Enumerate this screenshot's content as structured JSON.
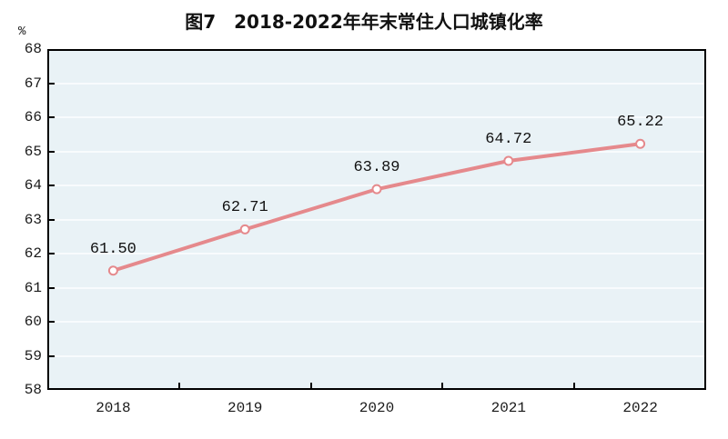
{
  "title": "图7　2018-2022年年末常住人口城镇化率",
  "chart_data": {
    "type": "line",
    "title": "图7　2018-2022年年末常住人口城镇化率",
    "categories": [
      "2018",
      "2019",
      "2020",
      "2021",
      "2022"
    ],
    "series": [
      {
        "name": "年末常住人口城镇化率",
        "values": [
          61.5,
          62.71,
          63.89,
          64.72,
          65.22
        ],
        "value_labels": [
          "61.50",
          "62.71",
          "63.89",
          "64.72",
          "65.22"
        ]
      }
    ],
    "xlabel": "",
    "ylabel": "%",
    "ylim": [
      58,
      68
    ],
    "ytick_step": 1,
    "grid": true,
    "legend_position": "none"
  },
  "colors": {
    "line": "#e5898c",
    "marker_fill": "#ffffff",
    "plot_background": "#e9f2f6",
    "grid_line": "#f8fbfd",
    "axis_frame": "#000000",
    "text": "#1a1a1a"
  }
}
